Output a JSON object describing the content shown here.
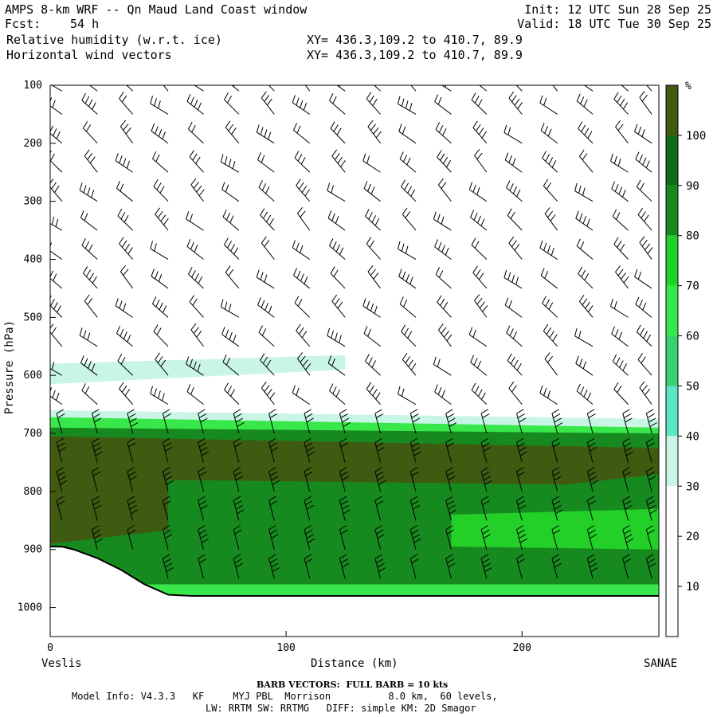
{
  "header": {
    "model_line": "AMPS 8-km WRF -- Qn Maud Land Coast window",
    "forecast_label": "Fcst:",
    "forecast_value": "54 h",
    "field1": "Relative humidity (w.r.t. ice)",
    "field2": "Horizontal wind vectors",
    "xy1": "XY= 436.3,109.2 to 410.7, 89.9",
    "xy2": "XY= 436.3,109.2 to 410.7, 89.9",
    "init": "Init: 12 UTC Sun 28 Sep 25",
    "valid": "Valid: 18 UTC Tue 30 Sep 25"
  },
  "chart_data": {
    "type": "heatmap",
    "xlabel": "Distance (km)",
    "ylabel": "Pressure (hPa)",
    "xlim": [
      0,
      258
    ],
    "ylim": [
      1050,
      100
    ],
    "xticks": [
      0,
      100,
      200
    ],
    "yticks": [
      100,
      200,
      300,
      400,
      500,
      600,
      700,
      800,
      900,
      1000
    ],
    "left_endpoint": "Veslis",
    "right_endpoint": "SANAE",
    "colorbar": {
      "unit": "%",
      "levels": [
        10,
        20,
        30,
        40,
        50,
        60,
        70,
        80,
        90,
        100
      ],
      "colors": [
        "#ffffff",
        "#ffffff",
        "#ffffff",
        "#c8f5e6",
        "#5ce6c6",
        "#3ccf6e",
        "#38e84a",
        "#22d028",
        "#178a1f",
        "#0f6b17",
        "#3f5b12"
      ]
    },
    "terrain_surface_hpa": {
      "x": [
        0,
        5,
        10,
        20,
        30,
        40,
        50,
        60,
        100,
        150,
        200,
        258
      ],
      "p": [
        895,
        895,
        900,
        915,
        935,
        960,
        978,
        980,
        980,
        980,
        980,
        980
      ]
    },
    "rh_layers": [
      {
        "rh": 35,
        "x": [
          0,
          125
        ],
        "p_top": [
          580,
          565
        ],
        "p_bottom": [
          615,
          590
        ]
      },
      {
        "rh": 35,
        "x": [
          0,
          258
        ],
        "p_top": [
          660,
          675
        ],
        "p_bottom": [
          985,
          985
        ]
      },
      {
        "rh": 60,
        "x": [
          0,
          258
        ],
        "p_top": [
          672,
          690
        ],
        "p_bottom": [
          985,
          985
        ]
      },
      {
        "rh": 80,
        "x": [
          0,
          258
        ],
        "p_top": [
          690,
          700
        ],
        "p_bottom": [
          960,
          960
        ]
      },
      {
        "rh": 100,
        "x": [
          0,
          258
        ],
        "p_top": [
          705,
          725
        ],
        "p_bottom": [
          890,
          770
        ]
      },
      {
        "rh": 85,
        "x": [
          50,
          258
        ],
        "p_top": [
          780,
          790
        ],
        "p_bottom": [
          870,
          840
        ]
      },
      {
        "rh": 75,
        "x": [
          170,
          258
        ],
        "p_top": [
          840,
          830
        ],
        "p_bottom": [
          895,
          900
        ]
      }
    ],
    "wind_barbs": {
      "columns_km": [
        5,
        20,
        35,
        50,
        65,
        80,
        95,
        110,
        125,
        140,
        155,
        170,
        185,
        200,
        215,
        230,
        245,
        255
      ],
      "levels_hpa": [
        110,
        150,
        200,
        250,
        300,
        350,
        400,
        450,
        500,
        550,
        600,
        650,
        700,
        750,
        800,
        850,
        900,
        950,
        980
      ],
      "barb_scale_kts": 10
    }
  },
  "footer": {
    "barb_note": "BARB VECTORS:  FULL BARB = 10 kts",
    "model_info_1": "Model Info: V4.3.3   KF     MYJ PBL  Morrison          8.0 km,  60 levels,",
    "model_info_2": "LW: RRTM SW: RRTMG   DIFF: simple KM: 2D Smagor"
  }
}
